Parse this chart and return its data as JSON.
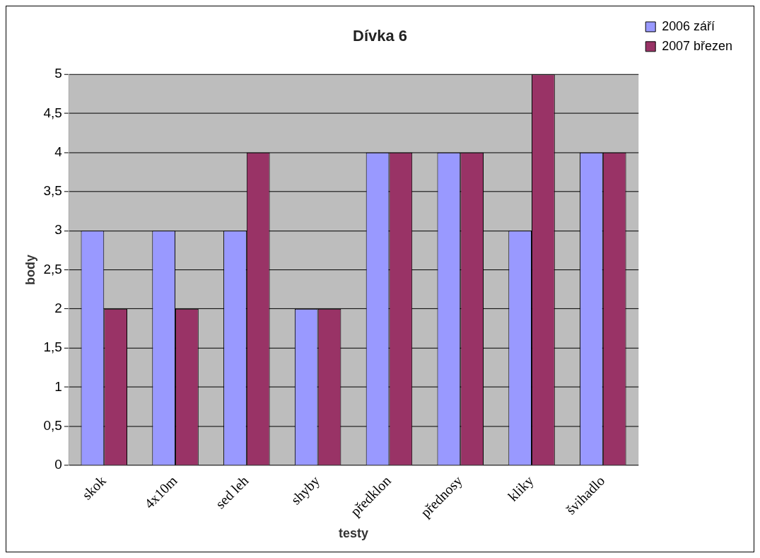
{
  "chart_data": {
    "type": "bar",
    "title": "Dívka 6",
    "xlabel": "testy",
    "ylabel": "body",
    "categories": [
      "skok",
      "4x10m",
      "sed leh",
      "shyby",
      "předklon",
      "přednosy",
      "kliky",
      "švihadlo"
    ],
    "series": [
      {
        "name": "2006 září",
        "color": "#9999ff",
        "values": [
          3,
          3,
          3,
          2,
          4,
          4,
          3,
          4
        ]
      },
      {
        "name": "2007 březen",
        "color": "#993366",
        "values": [
          2,
          2,
          4,
          2,
          4,
          4,
          5,
          4
        ]
      }
    ],
    "ylim": [
      0,
      5
    ],
    "yticks": [
      0,
      {
        "value": 0.5,
        "label": "0,5"
      },
      1,
      {
        "value": 1.5,
        "label": "1,5"
      },
      2,
      {
        "value": 2.5,
        "label": "2,5"
      },
      3,
      {
        "value": 3.5,
        "label": "3,5"
      },
      4,
      {
        "value": 4.5,
        "label": "4,5"
      },
      5
    ],
    "grid": "y",
    "legend": "top right"
  }
}
